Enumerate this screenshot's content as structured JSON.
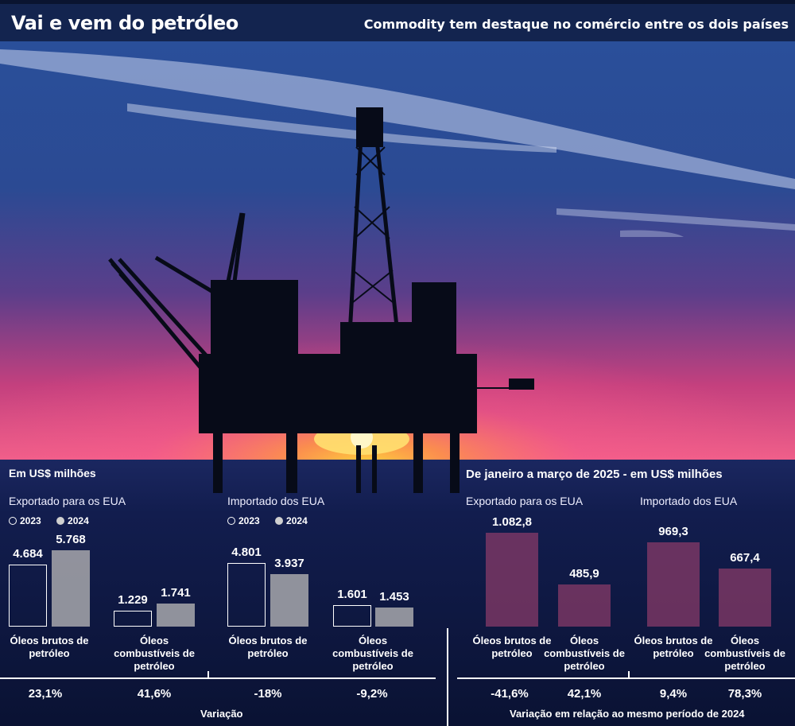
{
  "header": {
    "title": "Vai e vem do petróleo",
    "subtitle": "Commodity tem destaque no comércio entre os dois países"
  },
  "left": {
    "unit": "Em US$ milhões",
    "legend": {
      "a": "2023",
      "b": "2024"
    },
    "caption": "Variação"
  },
  "right": {
    "unit": "De janeiro a março de 2025 - em US$ milhões",
    "caption": "Variação em relação ao mesmo período de 2024"
  },
  "colors": {
    "header": "#13244f",
    "bar2024": "#a3a3a8",
    "bar2025": "#8c3c69",
    "outline": "#ffffff"
  },
  "chart_data": [
    {
      "type": "bar",
      "title": "Exportado para os EUA",
      "categories": [
        "Óleos brutos de petróleo",
        "Óleos combustíveis de petróleo"
      ],
      "series": [
        {
          "name": "2023",
          "values": [
            4684,
            1229
          ]
        },
        {
          "name": "2024",
          "values": [
            5768,
            1741
          ]
        }
      ],
      "labels": [
        [
          "4.684",
          "1.229"
        ],
        [
          "5.768",
          "1.741"
        ]
      ],
      "variation": [
        "23,1%",
        "41,6%"
      ]
    },
    {
      "type": "bar",
      "title": "Importado dos EUA",
      "categories": [
        "Óleos brutos de petróleo",
        "Óleos combustíveis de petróleo"
      ],
      "series": [
        {
          "name": "2023",
          "values": [
            4801,
            1601
          ]
        },
        {
          "name": "2024",
          "values": [
            3937,
            1453
          ]
        }
      ],
      "labels": [
        [
          "4.801",
          "1.601"
        ],
        [
          "3.937",
          "1.453"
        ]
      ],
      "variation": [
        "-18%",
        "-9,2%"
      ]
    },
    {
      "type": "bar",
      "title": "Exportado para os EUA",
      "categories": [
        "Óleos brutos de petróleo",
        "Óleos combustíveis de petróleo"
      ],
      "values": [
        1082.8,
        485.9
      ],
      "labels": [
        "1.082,8",
        "485,9"
      ],
      "variation": [
        "-41,6%",
        "42,1%"
      ]
    },
    {
      "type": "bar",
      "title": "Importado dos EUA",
      "categories": [
        "Óleos brutos de petróleo",
        "Óleos combustíveis de petróleo"
      ],
      "values": [
        969.3,
        667.4
      ],
      "labels": [
        "969,3",
        "667,4"
      ],
      "variation": [
        "9,4%",
        "78,3%"
      ]
    }
  ]
}
